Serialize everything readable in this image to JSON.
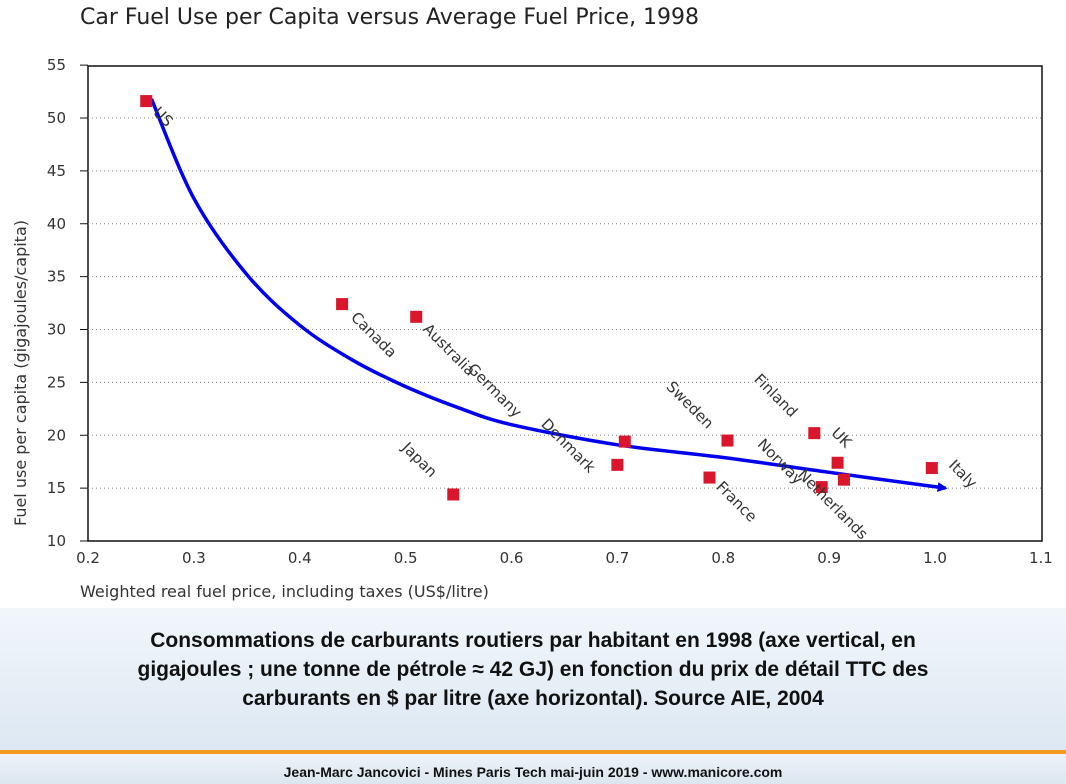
{
  "chart_data": {
    "type": "scatter",
    "title": "Car Fuel Use per Capita versus Average Fuel Price, 1998",
    "xlabel": "Weighted real fuel price, including taxes (US$/litre)",
    "ylabel": "Fuel use per capita (gigajoules/capita)",
    "xlim": [
      0.2,
      1.1
    ],
    "ylim": [
      10,
      55
    ],
    "xticks": [
      "0.2",
      "0.3",
      "0.4",
      "0.5",
      "0.6",
      "0.7",
      "0.8",
      "0.9",
      "1.0",
      "1.1"
    ],
    "yticks": [
      "10",
      "15",
      "20",
      "25",
      "30",
      "35",
      "40",
      "45",
      "50",
      "55"
    ],
    "grid": "horizontal dotted",
    "points": [
      {
        "label": "US",
        "x": 0.255,
        "y": 51.6
      },
      {
        "label": "Canada",
        "x": 0.44,
        "y": 32.4
      },
      {
        "label": "Australia",
        "x": 0.51,
        "y": 31.2
      },
      {
        "label": "Japan",
        "x": 0.545,
        "y": 14.4
      },
      {
        "label": "Germany",
        "x": 0.707,
        "y": 19.4
      },
      {
        "label": "Denmark",
        "x": 0.7,
        "y": 17.2
      },
      {
        "label": "France",
        "x": 0.787,
        "y": 16.0
      },
      {
        "label": "Sweden",
        "x": 0.804,
        "y": 19.5
      },
      {
        "label": "Finland",
        "x": 0.886,
        "y": 20.2
      },
      {
        "label": "Norway",
        "x": 0.893,
        "y": 15.1
      },
      {
        "label": "UK",
        "x": 0.908,
        "y": 17.4
      },
      {
        "label": "Netherlands",
        "x": 0.914,
        "y": 15.8
      },
      {
        "label": "Italy",
        "x": 0.997,
        "y": 16.9
      }
    ],
    "trend_curve": {
      "color": "#0000ee",
      "arrow": true,
      "x": [
        0.26,
        0.3,
        0.35,
        0.4,
        0.45,
        0.5,
        0.55,
        0.6,
        0.7,
        0.8,
        0.9,
        1.01
      ],
      "y": [
        51.8,
        42.4,
        35.2,
        30.4,
        27.1,
        24.6,
        22.6,
        21.0,
        19.1,
        17.9,
        16.5,
        15.0
      ]
    },
    "colors": {
      "marker": "#d9162b",
      "trend": "#0000ee",
      "grid": "#888888",
      "text": "#333333"
    }
  },
  "caption": {
    "text": "Consommations de carburants routiers par habitant en 1998  (axe vertical, en\ngigajoules ; une tonne de pétrole ≈ 42 GJ) en fonction du prix de détail TTC des\ncarburants en $ par litre (axe horizontal). Source AIE, 2004"
  },
  "footer": {
    "text": "Jean-Marc Jancovici - Mines Paris Tech mai-juin 2019 - www.manicore.com"
  }
}
